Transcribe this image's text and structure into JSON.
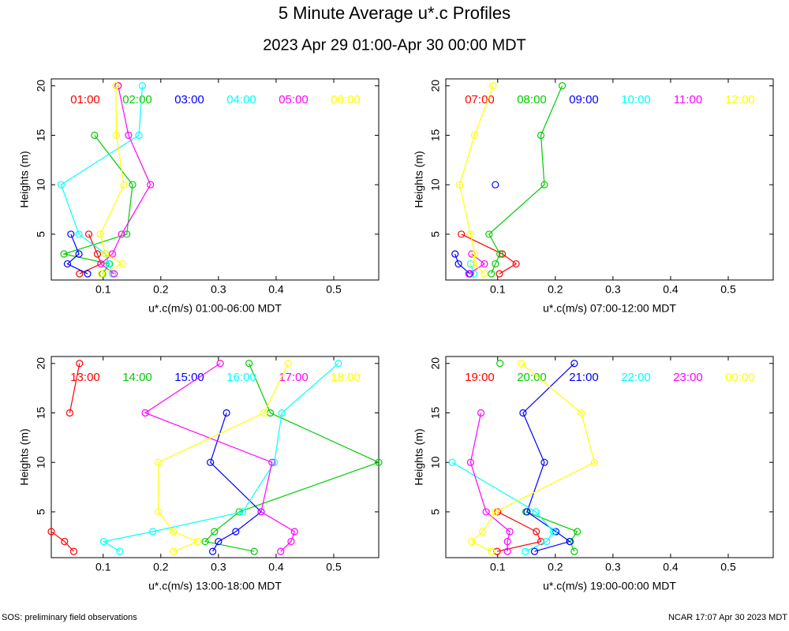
{
  "title": "5 Minute Average u*.c Profiles",
  "subtitle": "2023 Apr 29 01:00-Apr 30 00:00 MDT",
  "footer_left": "SOS: preliminary field observations",
  "footer_right": "NCAR 17:07 Apr 30 2023 MDT",
  "chart_data": [
    {
      "type": "line",
      "xlabel": "u*.c(m/s) 01:00-06:00 MDT",
      "ylabel": "Heights (m)",
      "xlim": [
        0.01,
        0.578
      ],
      "ylim": [
        0.37,
        20.7
      ],
      "xticks": [
        0.1,
        0.2,
        0.3,
        0.4,
        0.5
      ],
      "yticks": [
        5,
        10,
        15,
        20
      ],
      "y": [
        1,
        2,
        3,
        5,
        10,
        15,
        20
      ],
      "series": [
        {
          "name": "01:00",
          "color": "#ff0000",
          "x": [
            0.059,
            0.096,
            0.09,
            0.075,
            null,
            null,
            0.126
          ]
        },
        {
          "name": "02:00",
          "color": "#00cc00",
          "x": [
            0.099,
            0.111,
            0.032,
            0.141,
            0.151,
            0.085,
            null
          ]
        },
        {
          "name": "03:00",
          "color": "#0000ff",
          "x": [
            0.073,
            0.038,
            0.058,
            0.044,
            null,
            null,
            null
          ]
        },
        {
          "name": "04:00",
          "color": "#00ffff",
          "x": [
            0.116,
            0.11,
            0.104,
            0.058,
            0.027,
            0.162,
            0.168
          ]
        },
        {
          "name": "05:00",
          "color": "#ff00ff",
          "x": [
            0.119,
            0.096,
            0.116,
            0.132,
            0.182,
            0.144,
            0.126
          ]
        },
        {
          "name": "06:00",
          "color": "#ffff00",
          "x": [
            0.097,
            0.133,
            0.104,
            0.095,
            0.136,
            0.123,
            0.122
          ]
        }
      ]
    },
    {
      "type": "line",
      "xlabel": "u*.c(m/s) 07:00-12:00 MDT",
      "ylabel": "Heights (m)",
      "xlim": [
        0.01,
        0.578
      ],
      "ylim": [
        0.37,
        20.7
      ],
      "xticks": [
        0.1,
        0.2,
        0.3,
        0.4,
        0.5
      ],
      "yticks": [
        5,
        10,
        15,
        20
      ],
      "y": [
        1,
        2,
        3,
        5,
        10,
        15,
        20
      ],
      "series": [
        {
          "name": "07:00",
          "color": "#ff0000",
          "x": [
            0.103,
            0.132,
            0.108,
            0.037,
            null,
            null,
            null
          ]
        },
        {
          "name": "08:00",
          "color": "#00cc00",
          "x": [
            0.089,
            0.096,
            0.104,
            0.085,
            0.181,
            0.175,
            0.212
          ]
        },
        {
          "name": "09:00",
          "color": "#0000ff",
          "x": [
            0.052,
            0.032,
            0.026,
            null,
            0.096,
            null,
            null
          ]
        },
        {
          "name": "10:00",
          "color": "#00ffff",
          "x": [
            0.059,
            0.053,
            null,
            null,
            null,
            null,
            null
          ]
        },
        {
          "name": "11:00",
          "color": "#ff00ff",
          "x": [
            0.05,
            0.077,
            0.055,
            null,
            null,
            null,
            null
          ]
        },
        {
          "name": "12:00",
          "color": "#ffff00",
          "x": [
            0.077,
            0.059,
            0.06,
            0.053,
            0.034,
            0.06,
            0.092
          ]
        }
      ]
    },
    {
      "type": "line",
      "xlabel": "u*.c(m/s) 13:00-18:00 MDT",
      "ylabel": "Heights (m)",
      "xlim": [
        0.01,
        0.578
      ],
      "ylim": [
        0.37,
        20.7
      ],
      "xticks": [
        0.1,
        0.2,
        0.3,
        0.4,
        0.5
      ],
      "yticks": [
        5,
        10,
        15,
        20
      ],
      "y": [
        1,
        2,
        3,
        5,
        10,
        15,
        20
      ],
      "series": [
        {
          "name": "13:00",
          "color": "#ff0000",
          "x": [
            0.049,
            0.033,
            0.01,
            null,
            null,
            0.042,
            0.059
          ]
        },
        {
          "name": "14:00",
          "color": "#00cc00",
          "x": [
            0.362,
            0.277,
            0.293,
            0.336,
            0.578,
            0.39,
            0.353
          ]
        },
        {
          "name": "15:00",
          "color": "#0000ff",
          "x": [
            0.29,
            0.3,
            0.33,
            0.374,
            0.286,
            0.314,
            null
          ]
        },
        {
          "name": "16:00",
          "color": "#00ffff",
          "x": [
            0.129,
            0.101,
            0.186,
            0.342,
            0.397,
            0.41,
            0.508
          ]
        },
        {
          "name": "17:00",
          "color": "#ff00ff",
          "x": [
            0.408,
            0.426,
            0.432,
            0.374,
            0.393,
            0.173,
            0.303
          ]
        },
        {
          "name": "18:00",
          "color": "#ffff00",
          "x": [
            0.222,
            0.264,
            0.222,
            0.196,
            0.196,
            0.379,
            0.421
          ]
        }
      ]
    },
    {
      "type": "line",
      "xlabel": "u*.c(m/s) 19:00-00:00 MDT",
      "ylabel": "Heights (m)",
      "xlim": [
        0.01,
        0.578
      ],
      "ylim": [
        0.37,
        20.7
      ],
      "xticks": [
        0.1,
        0.2,
        0.3,
        0.4,
        0.5
      ],
      "yticks": [
        5,
        10,
        15,
        20
      ],
      "y": [
        1,
        2,
        3,
        5,
        10,
        15,
        20
      ],
      "series": [
        {
          "name": "19:00",
          "color": "#ff0000",
          "x": [
            0.099,
            0.175,
            0.167,
            0.1,
            null,
            null,
            null
          ]
        },
        {
          "name": "20:00",
          "color": "#00cc00",
          "x": [
            0.233,
            0.226,
            0.238,
            0.149,
            null,
            null,
            0.104
          ]
        },
        {
          "name": "21:00",
          "color": "#0000ff",
          "x": [
            0.164,
            0.225,
            0.201,
            0.151,
            0.181,
            0.144,
            0.233
          ]
        },
        {
          "name": "22:00",
          "color": "#00ffff",
          "x": [
            0.148,
            0.185,
            0.197,
            0.166,
            0.021,
            null,
            null
          ]
        },
        {
          "name": "23:00",
          "color": "#ff00ff",
          "x": [
            0.117,
            0.117,
            0.121,
            0.08,
            0.053,
            0.071,
            null
          ]
        },
        {
          "name": "00:00",
          "color": "#ffff00",
          "x": [
            0.089,
            0.055,
            0.074,
            0.096,
            0.268,
            0.245,
            0.141
          ]
        }
      ]
    }
  ]
}
